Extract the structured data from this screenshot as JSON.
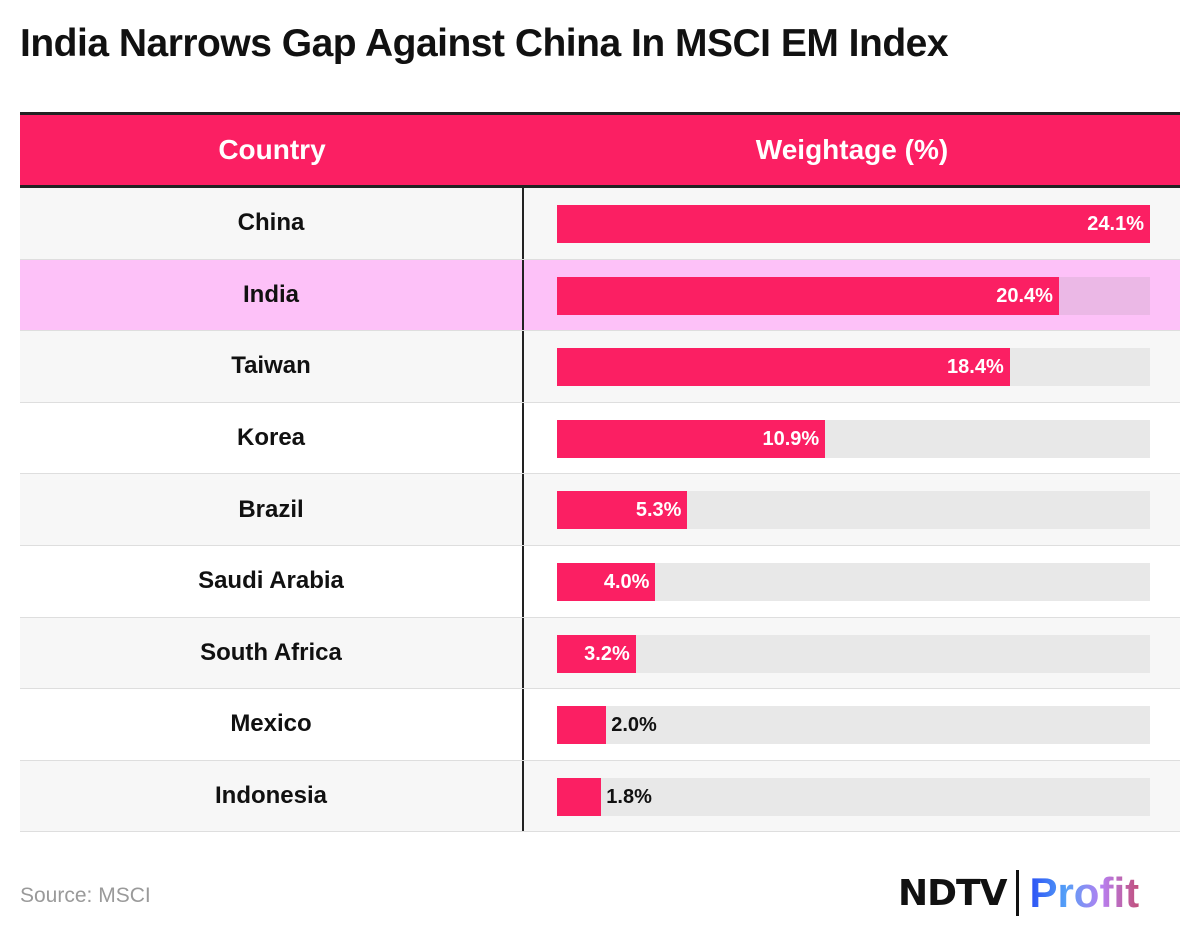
{
  "title": "India Narrows Gap Against China In MSCI EM Index",
  "chart_data": {
    "type": "bar",
    "orientation": "horizontal",
    "title": "India Narrows Gap Against China In MSCI EM Index",
    "columns": [
      "Country",
      "Weightage (%)"
    ],
    "categories": [
      "China",
      "India",
      "Taiwan",
      "Korea",
      "Brazil",
      "Saudi Arabia",
      "South Africa",
      "Mexico",
      "Indonesia"
    ],
    "values": [
      24.1,
      20.4,
      18.4,
      10.9,
      5.3,
      4.0,
      3.2,
      2.0,
      1.8
    ],
    "labels": [
      "24.1%",
      "20.4%",
      "18.4%",
      "10.9%",
      "5.3%",
      "4.0%",
      "3.2%",
      "2.0%",
      "1.8%"
    ],
    "xlim": [
      0,
      24.1
    ],
    "highlight": "India",
    "bar_color": "#fb1f63",
    "highlight_color": "#fdc1f8"
  },
  "source": "Source: MSCI",
  "logo": {
    "left": "NDTV",
    "right": "Profit"
  }
}
